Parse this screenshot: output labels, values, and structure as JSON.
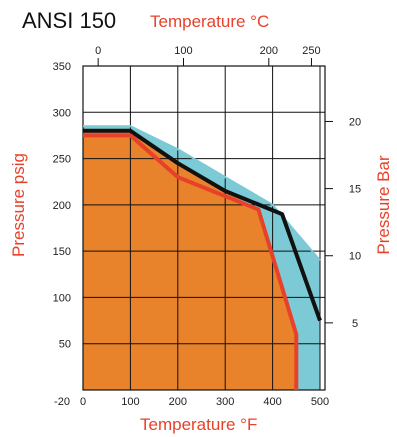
{
  "chart_data": {
    "type": "area",
    "title": "ANSI 150",
    "x_top_label": "Temperature °C",
    "x_bottom_label": "Temperature °F",
    "y_left_label": "Pressure psig",
    "y_right_label": "Pressure Bar",
    "x_bottom_ticks": [
      -20,
      0,
      100,
      200,
      300,
      400,
      500
    ],
    "x_top_ticks": [
      0,
      100,
      200,
      250
    ],
    "y_left_ticks": [
      50,
      100,
      150,
      200,
      250,
      300,
      350
    ],
    "y_right_ticks": [
      5,
      10,
      15,
      20
    ],
    "xlim": [
      -20,
      510
    ],
    "ylim": [
      0,
      350
    ],
    "grid": true,
    "series": [
      {
        "color": "#7ccad6",
        "x": [
          -20,
          100,
          200,
          300,
          400,
          500
        ],
        "y": [
          285,
          285,
          260,
          230,
          200,
          140
        ]
      },
      {
        "color": "#111111",
        "x": [
          -20,
          100,
          200,
          300,
          420,
          500
        ],
        "y": [
          280,
          280,
          245,
          215,
          190,
          75
        ]
      },
      {
        "color": "#e8412b",
        "x": [
          -20,
          100,
          200,
          370,
          450,
          450
        ],
        "y": [
          275,
          275,
          230,
          195,
          60,
          0
        ]
      }
    ],
    "fill_under": "#e8832b",
    "colors": {
      "accent": "#e8412b",
      "fill": "#e8832b",
      "cyan": "#7ccad6"
    }
  }
}
